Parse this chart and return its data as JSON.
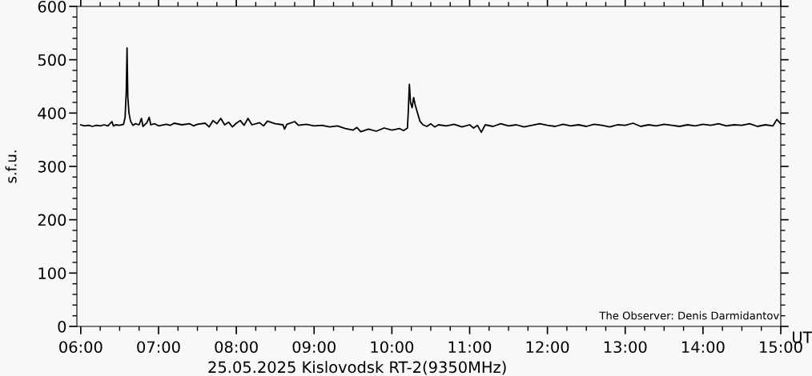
{
  "chart_data": {
    "type": "line",
    "title": "25.05.2025 Kislovodsk RT-2(9350MHz)",
    "xlabel": "UT",
    "ylabel": "s.f.u.",
    "annotations": [
      "The Observer: Denis Darmidantov"
    ],
    "x": [
      6.0,
      6.05,
      6.1,
      6.15,
      6.2,
      6.25,
      6.3,
      6.35,
      6.4,
      6.42,
      6.45,
      6.5,
      6.55,
      6.57,
      6.585,
      6.595,
      6.605,
      6.62,
      6.64,
      6.67,
      6.7,
      6.75,
      6.78,
      6.8,
      6.85,
      6.88,
      6.9,
      6.95,
      7.0,
      7.1,
      7.15,
      7.2,
      7.3,
      7.4,
      7.45,
      7.5,
      7.6,
      7.65,
      7.7,
      7.75,
      7.8,
      7.85,
      7.9,
      7.95,
      8.0,
      8.05,
      8.1,
      8.15,
      8.2,
      8.3,
      8.35,
      8.4,
      8.5,
      8.6,
      8.62,
      8.65,
      8.75,
      8.8,
      8.9,
      9.0,
      9.1,
      9.2,
      9.3,
      9.4,
      9.5,
      9.55,
      9.6,
      9.7,
      9.8,
      9.9,
      10.0,
      10.1,
      10.15,
      10.2,
      10.21,
      10.225,
      10.24,
      10.26,
      10.28,
      10.3,
      10.33,
      10.36,
      10.4,
      10.45,
      10.5,
      10.55,
      10.6,
      10.7,
      10.8,
      10.9,
      11.0,
      11.05,
      11.1,
      11.15,
      11.2,
      11.3,
      11.4,
      11.5,
      11.6,
      11.7,
      11.8,
      11.9,
      12.0,
      12.1,
      12.2,
      12.3,
      12.4,
      12.5,
      12.6,
      12.7,
      12.8,
      12.9,
      13.0,
      13.1,
      13.2,
      13.3,
      13.4,
      13.5,
      13.6,
      13.7,
      13.8,
      13.9,
      14.0,
      14.1,
      14.2,
      14.3,
      14.4,
      14.5,
      14.6,
      14.7,
      14.8,
      14.9,
      14.95,
      15.0
    ],
    "series": [
      {
        "color": "#000000",
        "values": [
          378,
          376,
          377,
          375,
          377,
          376,
          378,
          376,
          384,
          376,
          378,
          377,
          379,
          392,
          440,
          522,
          430,
          400,
          385,
          377,
          380,
          378,
          390,
          375,
          382,
          392,
          378,
          380,
          376,
          379,
          377,
          381,
          378,
          380,
          376,
          379,
          381,
          374,
          386,
          380,
          390,
          378,
          383,
          374,
          381,
          386,
          377,
          390,
          378,
          382,
          376,
          385,
          380,
          378,
          370,
          379,
          384,
          377,
          379,
          376,
          377,
          374,
          376,
          371,
          368,
          373,
          365,
          370,
          366,
          372,
          368,
          371,
          367,
          372,
          400,
          454,
          420,
          410,
          429,
          415,
          400,
          385,
          378,
          375,
          380,
          374,
          378,
          376,
          379,
          374,
          378,
          372,
          377,
          364,
          378,
          375,
          380,
          376,
          378,
          374,
          377,
          380,
          377,
          375,
          379,
          376,
          378,
          375,
          379,
          377,
          374,
          378,
          377,
          381,
          375,
          378,
          376,
          379,
          377,
          375,
          378,
          376,
          379,
          377,
          380,
          376,
          378,
          377,
          380,
          375,
          378,
          376,
          388,
          380
        ]
      }
    ],
    "xlim": [
      5.95,
      15.0
    ],
    "xticks": [
      {
        "value": 6,
        "label": "06:00"
      },
      {
        "value": 7,
        "label": "07:00"
      },
      {
        "value": 8,
        "label": "08:00"
      },
      {
        "value": 9,
        "label": "09:00"
      },
      {
        "value": 10,
        "label": "10:00"
      },
      {
        "value": 11,
        "label": "11:00"
      },
      {
        "value": 12,
        "label": "12:00"
      },
      {
        "value": 13,
        "label": "13:00"
      },
      {
        "value": 14,
        "label": "14:00"
      },
      {
        "value": 15,
        "label": "15:00"
      }
    ],
    "ylim": [
      0,
      600
    ],
    "yticks": [
      0,
      100,
      200,
      300,
      400,
      500,
      600
    ],
    "grid": false,
    "legend": false,
    "marker": "none",
    "line_style": "solid"
  }
}
